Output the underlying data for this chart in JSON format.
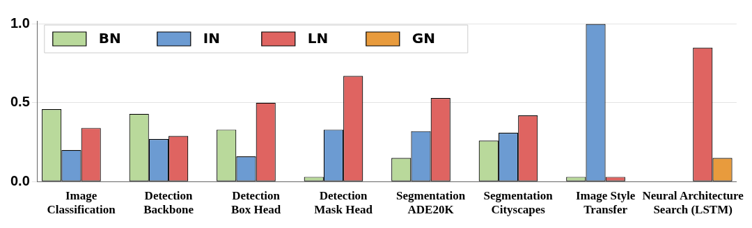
{
  "chart_data": {
    "type": "bar",
    "categories": [
      "Image\nClassification",
      "Detection\nBackbone",
      "Detection\nBox Head",
      "Detection\nMask Head",
      "Segmentation\nADE20K",
      "Segmentation\nCityscapes",
      "Image Style\nTransfer",
      "Neural Architecture\nSearch (LSTM)"
    ],
    "series": [
      {
        "name": "BN",
        "color": "#b9d99b",
        "values": [
          0.46,
          0.43,
          0.33,
          0.03,
          0.15,
          0.26,
          0.03,
          null
        ]
      },
      {
        "name": "IN",
        "color": "#6c9bd2",
        "values": [
          0.2,
          0.27,
          0.16,
          0.33,
          0.32,
          0.31,
          1.0,
          null
        ]
      },
      {
        "name": "LN",
        "color": "#df6461",
        "values": [
          0.34,
          0.29,
          0.5,
          0.67,
          0.53,
          0.42,
          0.03,
          0.85
        ]
      },
      {
        "name": "GN",
        "color": "#e89b3d",
        "values": [
          null,
          null,
          null,
          null,
          null,
          null,
          null,
          0.15
        ]
      }
    ],
    "ylim": [
      0,
      1.02
    ],
    "yticks": [
      {
        "value": 0,
        "label": "0.0"
      },
      {
        "value": 0.5,
        "label": "0.5"
      },
      {
        "value": 1,
        "label": "1.0"
      }
    ],
    "grid": "y",
    "legend": "top left"
  }
}
